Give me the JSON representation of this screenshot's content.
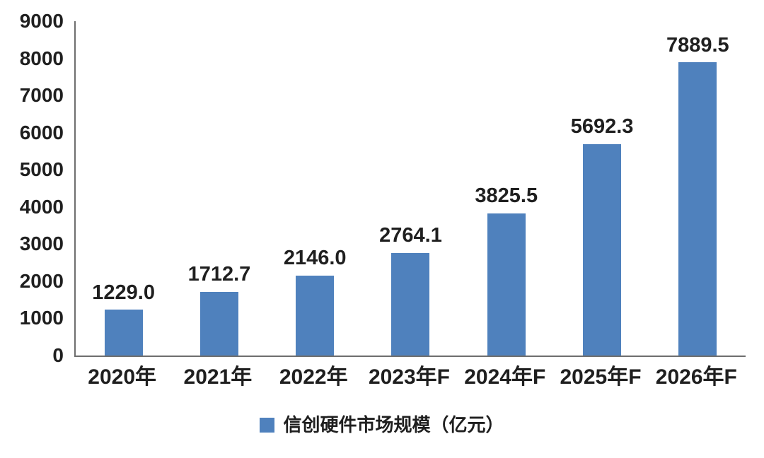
{
  "chart_data": {
    "type": "bar",
    "categories": [
      "2020年",
      "2021年",
      "2022年",
      "2023年F",
      "2024年F",
      "2025年F",
      "2026年F"
    ],
    "values": [
      1229.0,
      1712.7,
      2146.0,
      2764.1,
      3825.5,
      5692.3,
      7889.5
    ],
    "value_labels": [
      "1229.0",
      "1712.7",
      "2146.0",
      "2764.1",
      "3825.5",
      "5692.3",
      "7889.5"
    ],
    "title": "",
    "xlabel": "",
    "ylabel": "",
    "ylim": [
      0,
      9000
    ],
    "yticks": [
      0,
      1000,
      2000,
      3000,
      4000,
      5000,
      6000,
      7000,
      8000,
      9000
    ],
    "grid": false,
    "bar_color": "#4f81bd",
    "axis_color": "#6e6e6e",
    "text_color": "#1f1f1f",
    "legend_position": "bottom",
    "legend": [
      {
        "label": "信创硬件市场规模（亿元）",
        "color": "#4f81bd"
      }
    ]
  }
}
